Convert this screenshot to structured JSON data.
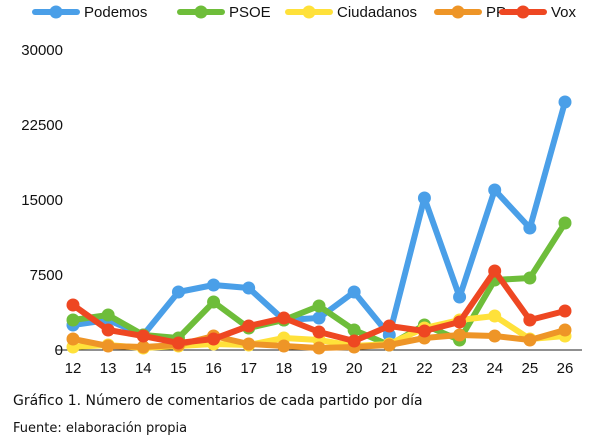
{
  "caption": {
    "title": "Gráfico 1. Número de comentarios de cada partido por día",
    "source": "Fuente: elaboración propia"
  },
  "chart_data": {
    "type": "line",
    "title": "",
    "xlabel": "",
    "ylabel": "",
    "x": [
      12,
      13,
      14,
      15,
      16,
      17,
      18,
      19,
      20,
      21,
      22,
      23,
      24,
      25,
      26
    ],
    "ylim": [
      0,
      30000
    ],
    "yticks": [
      0,
      7500,
      15000,
      22500,
      30000
    ],
    "grid": false,
    "legend_position": "top",
    "series": [
      {
        "name": "Podemos",
        "color": "#4a9fe8",
        "values": [
          2500,
          3000,
          1500,
          5800,
          6500,
          6200,
          3000,
          3200,
          5800,
          1500,
          15200,
          5300,
          16000,
          12200,
          24800
        ]
      },
      {
        "name": "PSOE",
        "color": "#6ebd3a",
        "values": [
          3000,
          3500,
          1500,
          1200,
          4800,
          2200,
          3000,
          4400,
          2000,
          500,
          2500,
          1000,
          7000,
          7200,
          12700
        ]
      },
      {
        "name": "Ciudadanos",
        "color": "#ffe13a",
        "values": [
          300,
          500,
          200,
          400,
          600,
          500,
          1200,
          1000,
          400,
          600,
          2200,
          3000,
          3400,
          1100,
          1400
        ]
      },
      {
        "name": "PP",
        "color": "#ee9527",
        "values": [
          1100,
          400,
          300,
          500,
          1400,
          600,
          400,
          200,
          300,
          500,
          1200,
          1500,
          1400,
          1000,
          2000
        ]
      },
      {
        "name": "Vox",
        "color": "#ee4722",
        "values": [
          4500,
          2000,
          1400,
          700,
          1100,
          2400,
          3200,
          1800,
          900,
          2400,
          1900,
          2800,
          7900,
          3000,
          3900
        ]
      }
    ]
  }
}
